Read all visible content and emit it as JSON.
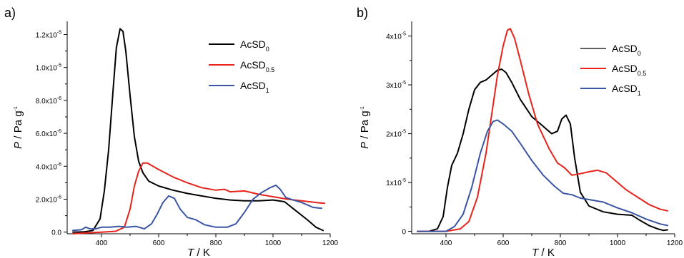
{
  "chart_data": [
    {
      "type": "line",
      "panel_label": "a)",
      "xlabel": {
        "var": "T",
        "unit": " / K"
      },
      "ylabel": {
        "var": "P",
        "unit": " / Pa g",
        "exp": "-1"
      },
      "xlim": [
        280,
        1200
      ],
      "ylim": [
        -1e-07,
        1.28e-05
      ],
      "x_ticks": [
        {
          "value": 400,
          "label": "400"
        },
        {
          "value": 600,
          "label": "600"
        },
        {
          "value": 800,
          "label": "800"
        },
        {
          "value": 1000,
          "label": "1000"
        },
        {
          "value": 1200,
          "label": "1200"
        }
      ],
      "y_ticks": [
        {
          "value": 0,
          "mant": "0.0",
          "exp": ""
        },
        {
          "value": 2e-06,
          "mant": "2.0x10",
          "exp": "-6"
        },
        {
          "value": 4e-06,
          "mant": "4.0x10",
          "exp": "-6"
        },
        {
          "value": 6e-06,
          "mant": "6.0x10",
          "exp": "-6"
        },
        {
          "value": 8e-06,
          "mant": "8.0x10",
          "exp": "-6"
        },
        {
          "value": 1e-05,
          "mant": "1.0x10",
          "exp": "-5"
        },
        {
          "value": 1.2e-05,
          "mant": "1.2x10",
          "exp": "-5"
        }
      ],
      "legend_placement": "top-right",
      "series": [
        {
          "name": "AcSD",
          "sub": "0",
          "color": "#000000",
          "points": [
            [
              300,
              0.0
            ],
            [
              340,
              2e-08
            ],
            [
              370,
              1e-07
            ],
            [
              395,
              8e-07
            ],
            [
              410,
              2.5e-06
            ],
            [
              425,
              5e-06
            ],
            [
              440,
              8.5e-06
            ],
            [
              452,
              1.12e-05
            ],
            [
              465,
              1.235e-05
            ],
            [
              475,
              1.22e-05
            ],
            [
              485,
              1.1e-05
            ],
            [
              500,
              8.3e-06
            ],
            [
              515,
              5.8e-06
            ],
            [
              530,
              4.3e-06
            ],
            [
              545,
              3.6e-06
            ],
            [
              565,
              3.1e-06
            ],
            [
              600,
              2.8e-06
            ],
            [
              650,
              2.55e-06
            ],
            [
              700,
              2.35e-06
            ],
            [
              750,
              2.2e-06
            ],
            [
              800,
              2.05e-06
            ],
            [
              850,
              1.95e-06
            ],
            [
              900,
              1.9e-06
            ],
            [
              950,
              1.9e-06
            ],
            [
              1000,
              1.95e-06
            ],
            [
              1040,
              1.85e-06
            ],
            [
              1080,
              1.3e-06
            ],
            [
              1120,
              7.5e-07
            ],
            [
              1150,
              3e-07
            ],
            [
              1175,
              1e-07
            ]
          ]
        },
        {
          "name": "AcSD",
          "sub": "0.5",
          "color": "#e8231c",
          "points": [
            [
              300,
              -1e-07
            ],
            [
              350,
              -5e-08
            ],
            [
              400,
              0.0
            ],
            [
              450,
              5e-08
            ],
            [
              480,
              3e-07
            ],
            [
              500,
              1.4e-06
            ],
            [
              515,
              2.8e-06
            ],
            [
              530,
              3.7e-06
            ],
            [
              545,
              4.2e-06
            ],
            [
              560,
              4.2e-06
            ],
            [
              580,
              4e-06
            ],
            [
              600,
              3.8e-06
            ],
            [
              650,
              3.35e-06
            ],
            [
              700,
              3e-06
            ],
            [
              750,
              2.7e-06
            ],
            [
              800,
              2.55e-06
            ],
            [
              830,
              2.6e-06
            ],
            [
              850,
              2.45e-06
            ],
            [
              900,
              2.5e-06
            ],
            [
              950,
              2.3e-06
            ],
            [
              1000,
              2.15e-06
            ],
            [
              1050,
              2e-06
            ],
            [
              1100,
              1.9e-06
            ],
            [
              1150,
              1.8e-06
            ],
            [
              1180,
              1.75e-06
            ]
          ]
        },
        {
          "name": "AcSD",
          "sub": "1",
          "color": "#3a55a4",
          "points": [
            [
              300,
              1e-07
            ],
            [
              330,
              1.5e-07
            ],
            [
              345,
              3e-07
            ],
            [
              360,
              2e-07
            ],
            [
              380,
              2e-07
            ],
            [
              400,
              3e-07
            ],
            [
              430,
              3e-07
            ],
            [
              460,
              3.5e-07
            ],
            [
              490,
              3e-07
            ],
            [
              520,
              3.5e-07
            ],
            [
              550,
              2e-07
            ],
            [
              575,
              5e-07
            ],
            [
              595,
              1.1e-06
            ],
            [
              615,
              1.8e-06
            ],
            [
              635,
              2.2e-06
            ],
            [
              655,
              2.05e-06
            ],
            [
              675,
              1.4e-06
            ],
            [
              700,
              9e-07
            ],
            [
              730,
              7.5e-07
            ],
            [
              760,
              4.5e-07
            ],
            [
              800,
              3e-07
            ],
            [
              840,
              3e-07
            ],
            [
              870,
              5e-07
            ],
            [
              900,
              1.2e-06
            ],
            [
              930,
              2e-06
            ],
            [
              960,
              2.4e-06
            ],
            [
              990,
              2.7e-06
            ],
            [
              1010,
              2.85e-06
            ],
            [
              1025,
              2.6e-06
            ],
            [
              1045,
              2.1e-06
            ],
            [
              1070,
              1.95e-06
            ],
            [
              1100,
              1.8e-06
            ],
            [
              1140,
              1.5e-06
            ],
            [
              1170,
              1.45e-06
            ]
          ]
        }
      ]
    },
    {
      "type": "line",
      "panel_label": "b)",
      "xlabel": {
        "var": "T",
        "unit": " / K"
      },
      "ylabel": {
        "var": "P",
        "unit": " / Pa g",
        "exp": "-1"
      },
      "xlim": [
        280,
        1200
      ],
      "ylim": [
        -5e-07,
        4.3e-05
      ],
      "x_ticks": [
        {
          "value": 400,
          "label": "400"
        },
        {
          "value": 600,
          "label": "600"
        },
        {
          "value": 800,
          "label": "800"
        },
        {
          "value": 1000,
          "label": "1000"
        },
        {
          "value": 1200,
          "label": "1200"
        }
      ],
      "y_ticks": [
        {
          "value": 0,
          "mant": "0",
          "exp": ""
        },
        {
          "value": 1e-05,
          "mant": "1x10",
          "exp": "-5"
        },
        {
          "value": 2e-05,
          "mant": "2x10",
          "exp": "-5"
        },
        {
          "value": 3e-05,
          "mant": "3x10",
          "exp": "-5"
        },
        {
          "value": 4e-05,
          "mant": "4x10",
          "exp": "-5"
        }
      ],
      "legend_placement": "top-right",
      "series": [
        {
          "name": "AcSD",
          "sub": "0",
          "color": "#000000",
          "points": [
            [
              300,
              0.0
            ],
            [
              340,
              0.0
            ],
            [
              370,
              5e-07
            ],
            [
              390,
              3e-06
            ],
            [
              405,
              9e-06
            ],
            [
              420,
              1.35e-05
            ],
            [
              440,
              1.6e-05
            ],
            [
              460,
              2e-05
            ],
            [
              480,
              2.5e-05
            ],
            [
              500,
              2.9e-05
            ],
            [
              520,
              3.05e-05
            ],
            [
              540,
              3.1e-05
            ],
            [
              560,
              3.2e-05
            ],
            [
              580,
              3.3e-05
            ],
            [
              595,
              3.32e-05
            ],
            [
              610,
              3.25e-05
            ],
            [
              630,
              3.05e-05
            ],
            [
              660,
              2.7e-05
            ],
            [
              700,
              2.35e-05
            ],
            [
              740,
              2.15e-05
            ],
            [
              770,
              2e-05
            ],
            [
              790,
              2.05e-05
            ],
            [
              805,
              2.3e-05
            ],
            [
              820,
              2.38e-05
            ],
            [
              835,
              2.2e-05
            ],
            [
              850,
              1.5e-05
            ],
            [
              870,
              8e-06
            ],
            [
              900,
              5.2e-06
            ],
            [
              950,
              4e-06
            ],
            [
              1000,
              3.5e-06
            ],
            [
              1050,
              3.3e-06
            ],
            [
              1080,
              2.2e-06
            ],
            [
              1110,
              1.2e-06
            ],
            [
              1140,
              5e-07
            ],
            [
              1160,
              2e-07
            ],
            [
              1175,
              3e-07
            ]
          ]
        },
        {
          "name": "AcSD",
          "sub": "0.5",
          "color": "#e8231c",
          "points": [
            [
              300,
              0.0
            ],
            [
              400,
              0.0
            ],
            [
              450,
              5e-07
            ],
            [
              480,
              2e-06
            ],
            [
              510,
              7e-06
            ],
            [
              540,
              1.6e-05
            ],
            [
              560,
              2.4e-05
            ],
            [
              580,
              3.2e-05
            ],
            [
              600,
              3.8e-05
            ],
            [
              615,
              4.12e-05
            ],
            [
              625,
              4.15e-05
            ],
            [
              640,
              3.95e-05
            ],
            [
              660,
              3.5e-05
            ],
            [
              690,
              2.8e-05
            ],
            [
              720,
              2.2e-05
            ],
            [
              760,
              1.7e-05
            ],
            [
              790,
              1.4e-05
            ],
            [
              815,
              1.3e-05
            ],
            [
              840,
              1.15e-05
            ],
            [
              870,
              1.18e-05
            ],
            [
              900,
              1.22e-05
            ],
            [
              930,
              1.25e-05
            ],
            [
              960,
              1.2e-05
            ],
            [
              990,
              1.05e-05
            ],
            [
              1030,
              8.5e-06
            ],
            [
              1070,
              7e-06
            ],
            [
              1110,
              5.5e-06
            ],
            [
              1150,
              4.5e-06
            ],
            [
              1175,
              4.2e-06
            ]
          ]
        },
        {
          "name": "AcSD",
          "sub": "1",
          "color": "#3a55a4",
          "points": [
            [
              300,
              0.0
            ],
            [
              400,
              0.0
            ],
            [
              430,
              1e-06
            ],
            [
              460,
              3.5e-06
            ],
            [
              490,
              9e-06
            ],
            [
              520,
              1.6e-05
            ],
            [
              545,
              2.05e-05
            ],
            [
              565,
              2.25e-05
            ],
            [
              580,
              2.28e-05
            ],
            [
              600,
              2.2e-05
            ],
            [
              630,
              2.05e-05
            ],
            [
              660,
              1.8e-05
            ],
            [
              700,
              1.45e-05
            ],
            [
              740,
              1.15e-05
            ],
            [
              780,
              9.2e-06
            ],
            [
              810,
              7.8e-06
            ],
            [
              840,
              7.5e-06
            ],
            [
              870,
              6.8e-06
            ],
            [
              900,
              6.5e-06
            ],
            [
              950,
              6e-06
            ],
            [
              1000,
              4.8e-06
            ],
            [
              1050,
              3.8e-06
            ],
            [
              1100,
              2.5e-06
            ],
            [
              1150,
              1.5e-06
            ],
            [
              1175,
              1.2e-06
            ]
          ]
        }
      ]
    }
  ]
}
